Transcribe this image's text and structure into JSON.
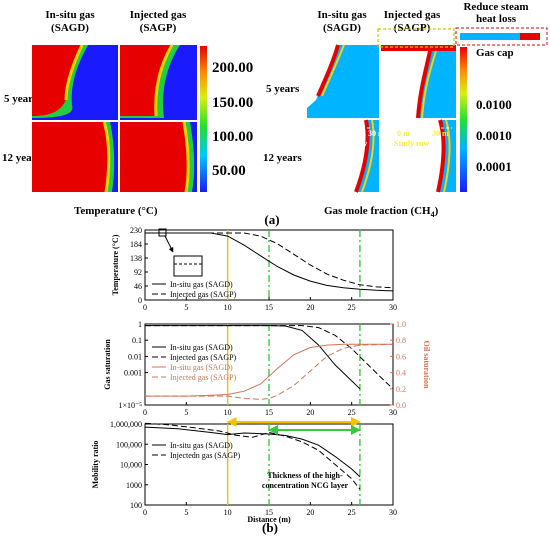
{
  "panel_a": {
    "label": "(a)",
    "temperature_maps": {
      "col_labels": [
        "In-situ gas\n(SAGD)",
        "Injected gas\n(SAGP)"
      ],
      "row_labels": [
        "5 years",
        "12 years"
      ],
      "colorbar_ticks": [
        "200.00",
        "150.00",
        "100.00",
        "50.00"
      ],
      "caption": "Temperature (°C)"
    },
    "gas_maps": {
      "col_labels": [
        "In-situ gas\n(SAGD)",
        "Injected gas\n(SAGP)"
      ],
      "row_labels": [
        "5 years",
        "12 years"
      ],
      "colorbar_ticks": [
        "0.0100",
        "0.0010",
        "0.0001"
      ],
      "caption": "Gas mole fraction (CH",
      "caption_sub": "4",
      "caption_end": ")",
      "annot_reduce": "Reduce steam\nheat loss",
      "annot_gascap": "Gas cap",
      "annot_0m_left": "0 m",
      "annot_30m_left": "30 m",
      "annot_studyrow_left": "Study row",
      "annot_0m_right": "0 m",
      "annot_30m_right": "30 m",
      "annot_studyrow_right": "Study row"
    }
  },
  "panel_b": {
    "label": "(b)",
    "xlabel": "Distance (m)",
    "annotation": "Thickness of the high-\nconcentration NCG layer",
    "vlines": [
      {
        "x": 10,
        "color": "#f2c200",
        "style": "solid"
      },
      {
        "x": 15,
        "color": "#3cc83c",
        "style": "dashdot"
      },
      {
        "x": 26,
        "color": "#3cc83c",
        "style": "dashdot"
      }
    ],
    "arrows": [
      {
        "from": 10,
        "to": 26,
        "color": "#f2c200"
      },
      {
        "from": 15,
        "to": 26,
        "color": "#3cc83c"
      }
    ]
  },
  "chart_data": [
    {
      "type": "line",
      "ylabel": "Temperature (°C)",
      "xlim": [
        0,
        30
      ],
      "ylim": [
        0,
        230
      ],
      "yticks": [
        0,
        46,
        92,
        138,
        184,
        230
      ],
      "xticks": [
        0,
        5,
        10,
        15,
        20,
        25,
        30
      ],
      "series": [
        {
          "name": "In-situ gas (SAGD)",
          "dash": "solid",
          "color": "#000000",
          "x": [
            0,
            8,
            10,
            12,
            14,
            16,
            18,
            20,
            22,
            24,
            26,
            28,
            30
          ],
          "y": [
            220,
            220,
            210,
            180,
            145,
            110,
            82,
            62,
            48,
            40,
            35,
            32,
            30
          ]
        },
        {
          "name": "Injected gas (SAGP)",
          "dash": "dashed",
          "color": "#000000",
          "x": [
            0,
            12,
            14,
            16,
            18,
            20,
            22,
            24,
            26,
            28,
            30
          ],
          "y": [
            220,
            220,
            210,
            185,
            150,
            115,
            85,
            65,
            50,
            43,
            40
          ]
        }
      ]
    },
    {
      "type": "line",
      "ylabel": "Gas saturation",
      "y2label": "Oil saturation",
      "xlim": [
        0,
        30
      ],
      "ylog": true,
      "ylim": [
        1e-05,
        1
      ],
      "yticks": [
        "1×10⁻⁵",
        "0.001",
        "0.01",
        "0.1",
        "1"
      ],
      "yticks_values": [
        1e-05,
        0.001,
        0.01,
        0.1,
        1
      ],
      "y2lim": [
        0,
        1
      ],
      "y2ticks": [
        0.0,
        0.2,
        0.4,
        0.6,
        0.8,
        1.0
      ],
      "xticks": [
        0,
        5,
        10,
        15,
        20,
        25,
        30
      ],
      "series": [
        {
          "name": "In-situ gas (SAGD)",
          "axis": "left",
          "dash": "solid",
          "color": "#000000",
          "x": [
            0,
            5,
            10,
            15,
            17,
            19,
            21,
            23,
            26
          ],
          "y": [
            0.8,
            0.8,
            0.8,
            0.8,
            0.75,
            0.4,
            0.05,
            0.003,
            0.0001
          ]
        },
        {
          "name": "Injected gas (SAGP)",
          "axis": "left",
          "dash": "dashed",
          "color": "#000000",
          "x": [
            0,
            10,
            15,
            19,
            21,
            23,
            25,
            27,
            29,
            30
          ],
          "y": [
            0.8,
            0.8,
            0.8,
            0.8,
            0.6,
            0.2,
            0.03,
            0.003,
            0.0003,
            0.0001
          ]
        },
        {
          "name": "In-situ gas (SAGD)",
          "axis": "right",
          "dash": "solid",
          "color": "#d2735a",
          "x": [
            0,
            5,
            8,
            10,
            12,
            14,
            16,
            18,
            20,
            22,
            24,
            26,
            30
          ],
          "y": [
            0.11,
            0.11,
            0.12,
            0.13,
            0.17,
            0.26,
            0.45,
            0.62,
            0.71,
            0.74,
            0.75,
            0.75,
            0.75
          ]
        },
        {
          "name": "Injected gas (SAGP)",
          "axis": "right",
          "dash": "dashed",
          "color": "#d2735a",
          "x": [
            0,
            10,
            12,
            14,
            15,
            16,
            18,
            20,
            22,
            24,
            26,
            30
          ],
          "y": [
            0.11,
            0.11,
            0.08,
            0.07,
            0.08,
            0.12,
            0.24,
            0.42,
            0.6,
            0.7,
            0.74,
            0.75
          ]
        }
      ]
    },
    {
      "type": "line",
      "ylabel": "Mobility ratio",
      "xlabel": "Distance (m)",
      "xlim": [
        0,
        30
      ],
      "ylog": true,
      "ylim": [
        100,
        1000000
      ],
      "yticks": [
        "100",
        "1000",
        "10,000",
        "100,000",
        "1,000,000"
      ],
      "yticks_values": [
        100,
        1000,
        10000,
        100000,
        1000000
      ],
      "xticks": [
        0,
        5,
        10,
        15,
        20,
        25,
        30
      ],
      "series": [
        {
          "name": "In-situ gas (SAGD)",
          "dash": "solid",
          "color": "#000000",
          "x": [
            0,
            4,
            8,
            10,
            12,
            15,
            17,
            19,
            21,
            23,
            25,
            26
          ],
          "y": [
            700000,
            580000,
            380000,
            300000,
            360000,
            320000,
            270000,
            180000,
            90000,
            25000,
            6000,
            2500
          ]
        },
        {
          "name": "Injectedn gas (SAGP)",
          "dash": "dashed",
          "color": "#000000",
          "x": [
            0,
            3,
            6,
            9,
            11,
            13,
            15,
            17,
            19,
            21,
            23,
            25,
            26
          ],
          "y": [
            1100000,
            900000,
            650000,
            450000,
            280000,
            220000,
            380000,
            250000,
            130000,
            50000,
            10000,
            2000,
            600
          ]
        }
      ]
    }
  ]
}
